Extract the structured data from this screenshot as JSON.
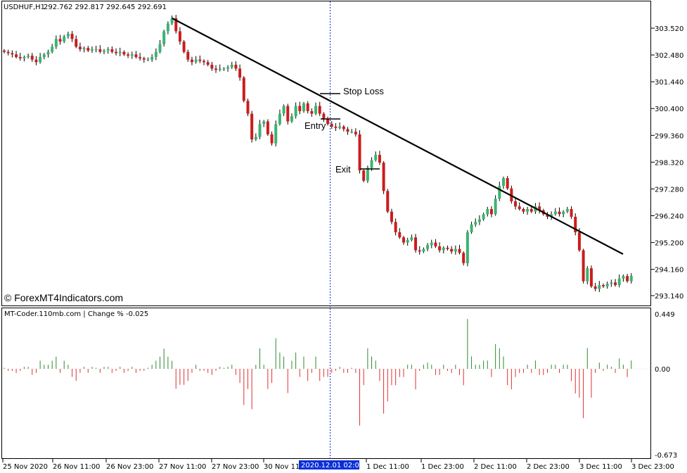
{
  "header": {
    "symbol_info": "USDHUF,H1",
    "ohlc": "292.762 292.817 292.645 292.691"
  },
  "watermark": "© ForexMT4Indicators.com",
  "indicator": {
    "title": "MT-Coder.110mb.com | Change % -0.025"
  },
  "annotations": {
    "stop_loss": "Stop Loss",
    "entry": "Entry",
    "exit": "Exit"
  },
  "crosshair_time": "2020.12.01 02:00",
  "colors": {
    "bull": "#3cb371",
    "bear": "#cc1c1c",
    "hist_up": "#2e8b2e",
    "hist_down": "#e03030",
    "trendline": "#000000",
    "axis": "#000000",
    "highlight": "#0a2fd8"
  },
  "chart_data": [
    {
      "type": "candlestick",
      "symbol": "USDHUF",
      "timeframe": "H1",
      "ylim": [
        292.7,
        304.2
      ],
      "y_ticks": [
        "303.520",
        "302.480",
        "301.440",
        "300.400",
        "299.360",
        "298.320",
        "297.280",
        "296.240",
        "295.200",
        "294.160",
        "293.140"
      ],
      "x_ticks": [
        "25 Nov 2020",
        "26 Nov 11:00",
        "26 Nov 23:00",
        "27 Nov 11:00",
        "27 Nov 23:00",
        "30 Nov 11:00",
        "2020.12.01 02:00",
        "1 Dec 11:00",
        "1 Dec 23:00",
        "2 Dec 11:00",
        "2 Dec 23:00",
        "3 Dec 11:00",
        "3 Dec 23:00"
      ],
      "close": [
        302.6,
        302.55,
        302.5,
        302.4,
        302.35,
        302.4,
        302.45,
        302.3,
        302.2,
        302.4,
        302.5,
        302.6,
        302.8,
        303.1,
        303.0,
        303.2,
        303.3,
        303.1,
        302.8,
        302.7,
        302.75,
        302.65,
        302.7,
        302.7,
        302.6,
        302.65,
        302.7,
        302.6,
        302.55,
        302.6,
        302.5,
        302.45,
        302.5,
        302.4,
        302.35,
        302.3,
        302.3,
        302.4,
        302.6,
        302.9,
        303.4,
        303.7,
        303.9,
        303.4,
        303.0,
        302.6,
        302.3,
        302.2,
        302.3,
        302.25,
        302.2,
        302.1,
        301.95,
        301.9,
        301.95,
        301.95,
        302.0,
        302.1,
        301.95,
        301.6,
        300.7,
        300.2,
        299.2,
        299.3,
        299.8,
        299.9,
        299.4,
        299.05,
        299.8,
        300.2,
        300.5,
        299.9,
        300.1,
        300.5,
        300.3,
        300.6,
        300.3,
        300.2,
        300.5,
        300.2,
        300.0,
        299.8,
        299.7,
        299.65,
        299.7,
        299.6,
        299.5,
        299.5,
        299.4,
        298.0,
        297.6,
        298.1,
        298.4,
        298.6,
        298.3,
        297.2,
        296.4,
        296.0,
        295.6,
        295.4,
        295.2,
        295.3,
        295.4,
        294.9,
        294.85,
        294.95,
        295.1,
        295.2,
        295.05,
        294.9,
        295.0,
        294.95,
        294.85,
        294.95,
        294.8,
        294.4,
        295.6,
        295.9,
        296.0,
        296.1,
        296.3,
        296.5,
        296.3,
        296.9,
        297.4,
        297.7,
        297.3,
        296.8,
        296.6,
        296.5,
        296.4,
        296.5,
        296.4,
        296.6,
        296.45,
        296.3,
        296.2,
        296.3,
        296.4,
        296.3,
        296.4,
        296.5,
        296.2,
        295.6,
        294.9,
        293.7,
        294.2,
        293.5,
        293.4,
        293.55,
        293.5,
        293.6,
        293.65,
        293.55,
        293.8,
        293.9,
        293.7,
        293.9
      ],
      "trendline": {
        "from_value": 303.95,
        "to_value": 294.9
      },
      "levels": {
        "stop_loss": 301.0,
        "entry": 300.0,
        "exit": 298.3
      }
    },
    {
      "type": "bar",
      "name": "Change %",
      "ylim": [
        -0.673,
        0.449
      ],
      "y_ticks": [
        "0.449",
        "0.00",
        "-0.673"
      ]
    }
  ]
}
